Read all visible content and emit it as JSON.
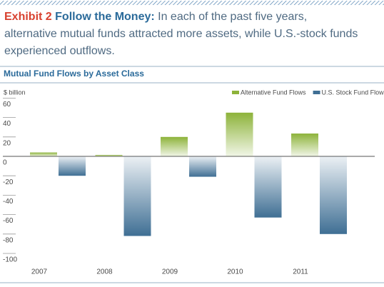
{
  "header": {
    "exhibit": "Exhibit 2",
    "lead": "Follow the Money:",
    "text": "In each of the past five years, alternative mutual funds attracted more assets, while U.S.-stock funds experienced outflows."
  },
  "chart_data": {
    "type": "bar",
    "title": "Mutual Fund Flows by Asset Class",
    "y_label": "$ billion",
    "categories": [
      "2007",
      "2008",
      "2009",
      "2010",
      "2011"
    ],
    "series": [
      {
        "name": "Alternative Fund Flows",
        "color": "#8db33a",
        "values": [
          4,
          1.5,
          20,
          45,
          23.5
        ]
      },
      {
        "name": "U.S. Stock Fund Flows",
        "color": "#3f6f94",
        "values": [
          -20,
          -82,
          -21,
          -63,
          -80
        ]
      }
    ],
    "ylim": [
      -100,
      60
    ],
    "yticks": [
      -100,
      -80,
      -60,
      -40,
      -20,
      0,
      20,
      40,
      60
    ],
    "legend": "top-right"
  }
}
